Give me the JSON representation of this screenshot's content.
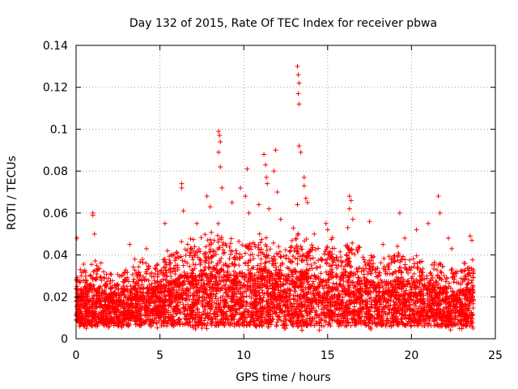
{
  "chart_data": {
    "type": "scatter",
    "title": "Day 132 of 2015, Rate Of TEC Index for receiver pbwa",
    "xlabel": "GPS time / hours",
    "ylabel": "ROTI / TECUs",
    "xlim": [
      0,
      25
    ],
    "ylim": [
      0,
      0.14
    ],
    "xticks": [
      0,
      5,
      10,
      15,
      20,
      25
    ],
    "xtick_labels": [
      "0",
      "5",
      "10",
      "15",
      "20",
      "25"
    ],
    "yticks": [
      0,
      0.02,
      0.04,
      0.06,
      0.08,
      0.1,
      0.12,
      0.14
    ],
    "ytick_labels": [
      "0",
      "0.02",
      "0.04",
      "0.06",
      "0.08",
      "0.1",
      "0.12",
      "0.14"
    ],
    "grid": true,
    "marker": "+",
    "color": "#ff0000",
    "data_span_hours": [
      0,
      23.7
    ],
    "envelope": {
      "x": [
        0,
        0.5,
        1,
        1.5,
        2,
        2.5,
        3,
        3.5,
        4,
        4.5,
        5,
        5.5,
        6,
        6.5,
        7,
        7.5,
        8,
        8.5,
        9,
        9.5,
        10,
        10.5,
        11,
        11.5,
        12,
        12.5,
        13,
        13.5,
        14,
        14.5,
        15,
        15.5,
        16,
        16.5,
        17,
        17.5,
        18,
        18.5,
        19,
        19.5,
        20,
        20.5,
        21,
        21.5,
        22,
        22.5,
        23,
        23.5
      ],
      "typical_max": [
        0.03,
        0.032,
        0.038,
        0.032,
        0.028,
        0.03,
        0.032,
        0.035,
        0.036,
        0.033,
        0.036,
        0.04,
        0.042,
        0.045,
        0.044,
        0.046,
        0.048,
        0.052,
        0.046,
        0.044,
        0.048,
        0.046,
        0.052,
        0.048,
        0.046,
        0.044,
        0.05,
        0.048,
        0.045,
        0.042,
        0.046,
        0.044,
        0.048,
        0.046,
        0.044,
        0.04,
        0.038,
        0.04,
        0.042,
        0.038,
        0.036,
        0.036,
        0.038,
        0.036,
        0.034,
        0.032,
        0.032,
        0.034
      ]
    },
    "notable_points": [
      {
        "x": 0.05,
        "y": 0.048
      },
      {
        "x": 1.0,
        "y": 0.06
      },
      {
        "x": 1.0,
        "y": 0.059
      },
      {
        "x": 1.1,
        "y": 0.05
      },
      {
        "x": 3.2,
        "y": 0.045
      },
      {
        "x": 4.2,
        "y": 0.043
      },
      {
        "x": 5.3,
        "y": 0.055
      },
      {
        "x": 6.3,
        "y": 0.074
      },
      {
        "x": 6.3,
        "y": 0.072
      },
      {
        "x": 6.4,
        "y": 0.061
      },
      {
        "x": 7.2,
        "y": 0.055
      },
      {
        "x": 7.8,
        "y": 0.068
      },
      {
        "x": 8.0,
        "y": 0.063
      },
      {
        "x": 8.5,
        "y": 0.099
      },
      {
        "x": 8.55,
        "y": 0.097
      },
      {
        "x": 8.6,
        "y": 0.094
      },
      {
        "x": 8.6,
        "y": 0.082
      },
      {
        "x": 8.5,
        "y": 0.089
      },
      {
        "x": 8.7,
        "y": 0.072
      },
      {
        "x": 9.3,
        "y": 0.065
      },
      {
        "x": 9.8,
        "y": 0.072
      },
      {
        "x": 10.2,
        "y": 0.081
      },
      {
        "x": 10.1,
        "y": 0.068
      },
      {
        "x": 10.3,
        "y": 0.06
      },
      {
        "x": 10.9,
        "y": 0.064
      },
      {
        "x": 11.2,
        "y": 0.088
      },
      {
        "x": 11.3,
        "y": 0.083
      },
      {
        "x": 11.35,
        "y": 0.077
      },
      {
        "x": 11.4,
        "y": 0.074
      },
      {
        "x": 11.5,
        "y": 0.062
      },
      {
        "x": 11.8,
        "y": 0.08
      },
      {
        "x": 11.9,
        "y": 0.09
      },
      {
        "x": 12.0,
        "y": 0.07
      },
      {
        "x": 12.2,
        "y": 0.057
      },
      {
        "x": 13.2,
        "y": 0.13
      },
      {
        "x": 13.25,
        "y": 0.126
      },
      {
        "x": 13.3,
        "y": 0.122
      },
      {
        "x": 13.25,
        "y": 0.117
      },
      {
        "x": 13.3,
        "y": 0.112
      },
      {
        "x": 13.3,
        "y": 0.092
      },
      {
        "x": 13.4,
        "y": 0.089
      },
      {
        "x": 13.2,
        "y": 0.064
      },
      {
        "x": 13.6,
        "y": 0.077
      },
      {
        "x": 13.6,
        "y": 0.073
      },
      {
        "x": 13.7,
        "y": 0.067
      },
      {
        "x": 13.8,
        "y": 0.065
      },
      {
        "x": 14.2,
        "y": 0.05
      },
      {
        "x": 14.9,
        "y": 0.055
      },
      {
        "x": 15.0,
        "y": 0.052
      },
      {
        "x": 16.3,
        "y": 0.068
      },
      {
        "x": 16.4,
        "y": 0.066
      },
      {
        "x": 16.3,
        "y": 0.062
      },
      {
        "x": 16.5,
        "y": 0.057
      },
      {
        "x": 16.2,
        "y": 0.053
      },
      {
        "x": 17.5,
        "y": 0.056
      },
      {
        "x": 18.3,
        "y": 0.045
      },
      {
        "x": 19.3,
        "y": 0.06
      },
      {
        "x": 19.6,
        "y": 0.048
      },
      {
        "x": 20.3,
        "y": 0.052
      },
      {
        "x": 21.0,
        "y": 0.055
      },
      {
        "x": 21.6,
        "y": 0.068
      },
      {
        "x": 21.7,
        "y": 0.06
      },
      {
        "x": 22.2,
        "y": 0.048
      },
      {
        "x": 22.4,
        "y": 0.043
      },
      {
        "x": 23.2,
        "y": 0.036
      },
      {
        "x": 23.5,
        "y": 0.049
      },
      {
        "x": 23.6,
        "y": 0.047
      }
    ]
  }
}
